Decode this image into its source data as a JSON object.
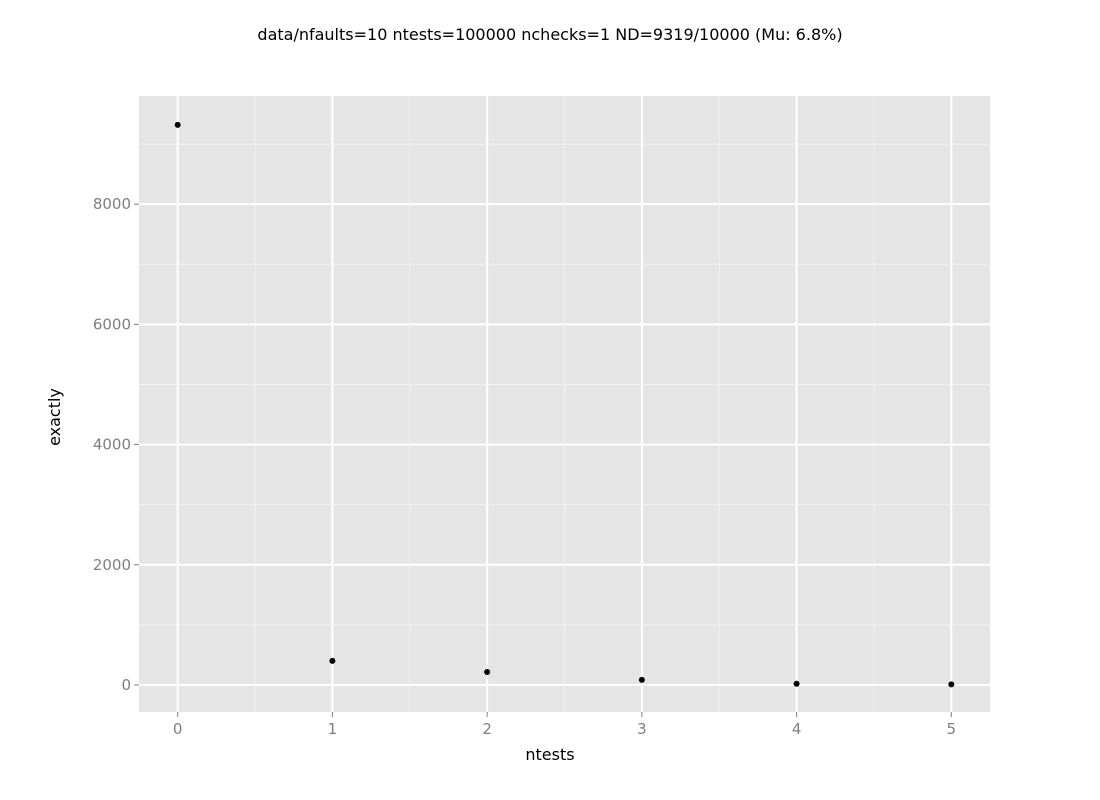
{
  "chart_data": {
    "type": "scatter",
    "title": "data/nfaults=10 ntests=100000 nchecks=1  ND=9319/10000 (Mu: 6.8%)",
    "xlabel": "ntests",
    "ylabel": "exactly",
    "x": [
      0,
      1,
      2,
      3,
      4,
      5
    ],
    "y": [
      9319,
      400,
      215,
      85,
      20,
      10
    ],
    "xlim": [
      -0.25,
      5.25
    ],
    "ylim": [
      -450,
      9800
    ],
    "x_ticks": [
      0,
      1,
      2,
      3,
      4,
      5
    ],
    "x_tick_labels": [
      "0",
      "1",
      "2",
      "3",
      "4",
      "5"
    ],
    "y_ticks": [
      0,
      2000,
      4000,
      6000,
      8000
    ],
    "y_tick_labels": [
      "0",
      "2000",
      "4000",
      "6000",
      "8000"
    ],
    "grid": true,
    "legend": "none",
    "colors": {
      "panel_background": "#e5e5e5",
      "grid_major": "#ffffff",
      "grid_minor": "#f2f2f2",
      "point": "#000000"
    }
  }
}
